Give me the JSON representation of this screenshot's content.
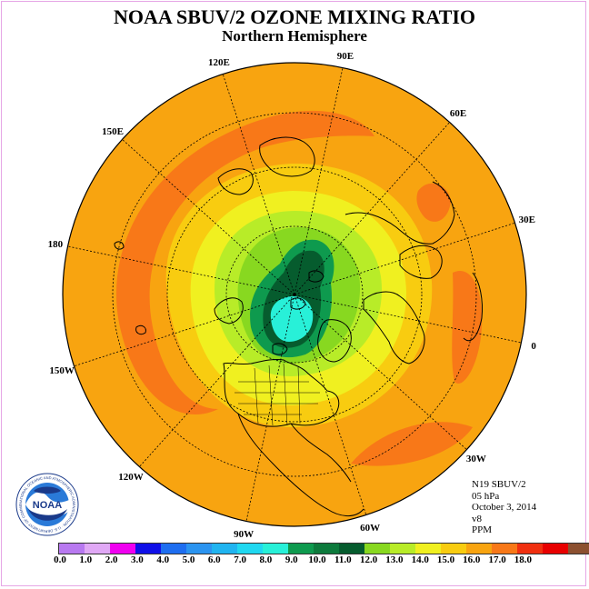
{
  "header": {
    "title": "NOAA SBUV/2 OZONE MIXING RATIO",
    "subtitle": "Northern Hemisphere"
  },
  "longitude_labels": [
    "90E",
    "60E",
    "30E",
    "0",
    "30W",
    "60W",
    "90W",
    "120W",
    "150W",
    "180",
    "150E",
    "120E"
  ],
  "info": {
    "satellite": "N19 SBUV/2",
    "pressure": "05 hPa",
    "date": "October 3, 2014",
    "version": "v8",
    "units": "PPM"
  },
  "logo": {
    "name": "noaa-logo",
    "text": "NOAA",
    "ring_text": "NATIONAL OCEANIC AND ATMOSPHERIC ADMINISTRATION · U.S. DEPARTMENT OF COMMERCE"
  },
  "colorbar": {
    "colors": [
      "#b879f0",
      "#e0a8f5",
      "#f000f0",
      "#1010e8",
      "#1e6ef0",
      "#2b94f0",
      "#20b4f0",
      "#20d8f0",
      "#28f0d8",
      "#0e9a4e",
      "#0d7a3c",
      "#065c2e",
      "#88d820",
      "#b8ec28",
      "#f0f020",
      "#f8cc10",
      "#f8a410",
      "#f87818",
      "#f03010",
      "#e80000",
      "#8c5030"
    ],
    "tick_labels": [
      "0.0",
      "1.0",
      "2.0",
      "3.0",
      "4.0",
      "5.0",
      "6.0",
      "7.0",
      "8.0",
      "9.0",
      "10.0",
      "11.0",
      "12.0",
      "13.0",
      "14.0",
      "15.0",
      "16.0",
      "17.0",
      "18.0"
    ]
  },
  "map_colors": {
    "background": "#f8a410",
    "band_high": "#f87818",
    "band_low": "#f8cc10",
    "yellow": "#f0f020",
    "light_green": "#b8ec28",
    "green": "#88d820",
    "mid_green": "#0e9a4e",
    "dark_green": "#065c2e",
    "cyan": "#28f0d8"
  }
}
